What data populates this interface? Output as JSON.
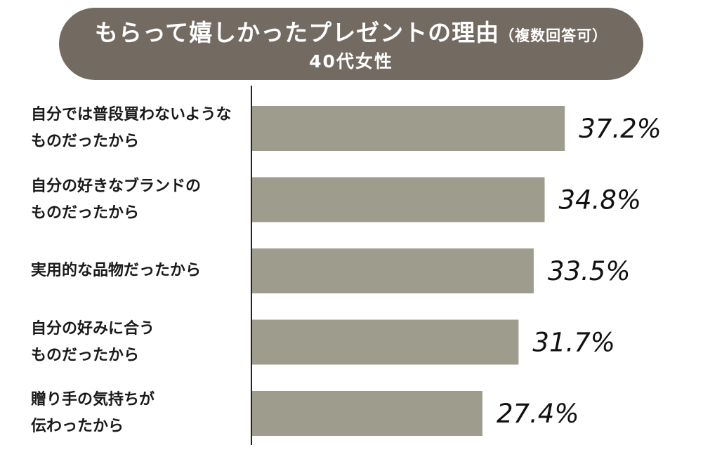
{
  "title": {
    "main": "もらって嬉しかったプレゼントの理由",
    "note": "（複数回答可）",
    "subtitle": "40代女性"
  },
  "chart_data": {
    "type": "bar",
    "orientation": "horizontal",
    "categories": [
      "自分では普段買わないような\nものだったから",
      "自分の好きなブランドの\nものだったから",
      "実用的な品物だったから",
      "自分の好みに合う\nものだったから",
      "贈り手の気持ちが\n伝わったから"
    ],
    "values": [
      37.2,
      34.8,
      33.5,
      31.7,
      27.4
    ],
    "value_labels": [
      "37.2%",
      "34.8%",
      "33.5%",
      "31.7%",
      "27.4%"
    ],
    "unit": "%",
    "xlim": [
      0,
      44.7
    ],
    "grid": false,
    "legend": "none",
    "colors": {
      "bar": "#9e9d8d",
      "axis": "#222222",
      "title_bg": "#736b62",
      "title_text": "#ffffff",
      "label_text": "#1a1a1a"
    }
  }
}
